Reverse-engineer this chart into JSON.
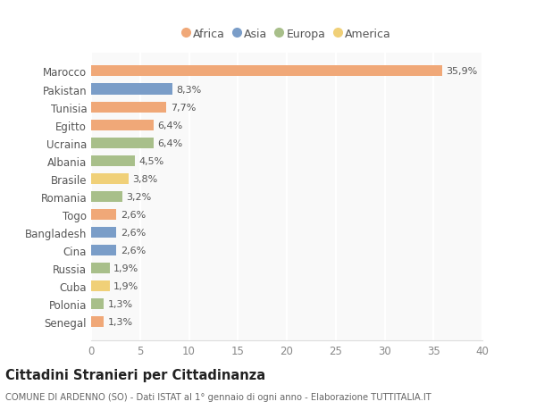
{
  "countries": [
    "Marocco",
    "Pakistan",
    "Tunisia",
    "Egitto",
    "Ucraina",
    "Albania",
    "Brasile",
    "Romania",
    "Togo",
    "Bangladesh",
    "Cina",
    "Russia",
    "Cuba",
    "Polonia",
    "Senegal"
  ],
  "values": [
    35.9,
    8.3,
    7.7,
    6.4,
    6.4,
    4.5,
    3.8,
    3.2,
    2.6,
    2.6,
    2.6,
    1.9,
    1.9,
    1.3,
    1.3
  ],
  "labels": [
    "35,9%",
    "8,3%",
    "7,7%",
    "6,4%",
    "6,4%",
    "4,5%",
    "3,8%",
    "3,2%",
    "2,6%",
    "2,6%",
    "2,6%",
    "1,9%",
    "1,9%",
    "1,3%",
    "1,3%"
  ],
  "continents": [
    "Africa",
    "Asia",
    "Africa",
    "Africa",
    "Europa",
    "Europa",
    "America",
    "Europa",
    "Africa",
    "Asia",
    "Asia",
    "Europa",
    "America",
    "Europa",
    "Africa"
  ],
  "continent_colors": {
    "Africa": "#F0A878",
    "Asia": "#7A9DC8",
    "Europa": "#A8BF8A",
    "America": "#F0D078"
  },
  "legend_order": [
    "Africa",
    "Asia",
    "Europa",
    "America"
  ],
  "bg_color": "#ffffff",
  "plot_bg_color": "#f9f9f9",
  "title": "Cittadini Stranieri per Cittadinanza",
  "subtitle": "COMUNE DI ARDENNO (SO) - Dati ISTAT al 1° gennaio di ogni anno - Elaborazione TUTTITALIA.IT",
  "xlim": [
    0,
    40
  ],
  "xticks": [
    0,
    5,
    10,
    15,
    20,
    25,
    30,
    35,
    40
  ]
}
